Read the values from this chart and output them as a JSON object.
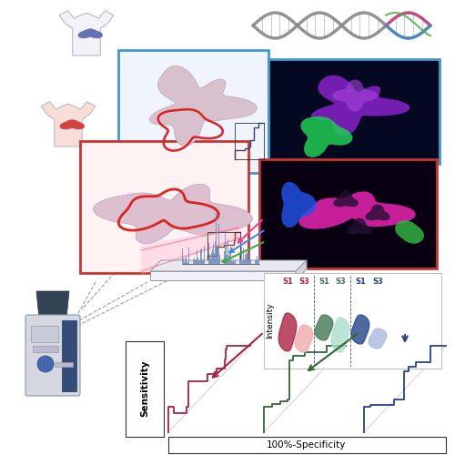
{
  "bg_color": "#ffffff",
  "blue_box_color": "#4499cc",
  "red_box_color": "#cc3333",
  "dna_pink": "#cc4488",
  "dna_gray": "#888888",
  "dna_blue": "#4488cc",
  "dna_green": "#44aa44",
  "fl_purple": "#9933cc",
  "fl_green": "#33cc55",
  "fl_magenta": "#dd33aa",
  "fl_blue": "#3366ee",
  "tissue_pink": "#ddb8cc",
  "tissue_outline_red": "#dd3333",
  "tissue_outline_blue": "#334488",
  "spectrum_color": "#6688bb",
  "spectrum_highlight": "#ffaaaa",
  "roc_red": "#aa2244",
  "roc_green": "#336633",
  "roc_blue": "#224488",
  "violin_colors": [
    "#aa2244",
    "#f0aaaa",
    "#447755",
    "#aaddcc",
    "#224488",
    "#aabbdd"
  ],
  "intensity_label": "Intensity",
  "sensitivity_label": "Sensitivity",
  "specificity_label": "100%-Specificity",
  "machine_body": "#ccd0dd",
  "machine_top": "#334466",
  "machine_blue": "#334d77"
}
